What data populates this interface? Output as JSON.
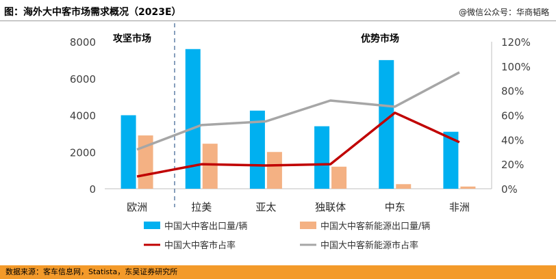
{
  "header": {
    "title": "图：海外大中客市场需求概况（2023E）",
    "watermark": "@微信公众号：华商韬略"
  },
  "footer": {
    "source": "数据来源：客车信息网，Statista，东吴证券研究所"
  },
  "colors": {
    "export_bar": "#00b0f0",
    "nev_export_bar": "#f4b183",
    "market_share_line": "#c00000",
    "nev_share_line": "#a6a6a6",
    "footer_band": "#f39a2a"
  },
  "chart_data": {
    "type": "bar",
    "categories": [
      "欧洲",
      "拉美",
      "亚太",
      "独联体",
      "中东",
      "非洲"
    ],
    "series": [
      {
        "name": "中国大中客出口量/辆",
        "type": "bar",
        "axis": "left",
        "values": [
          4000,
          7600,
          4250,
          3400,
          7000,
          3100
        ]
      },
      {
        "name": "中国大中客新能源出口量/辆",
        "type": "bar",
        "axis": "left",
        "values": [
          2900,
          2450,
          2000,
          1200,
          250,
          120
        ]
      },
      {
        "name": "中国大中客市占率",
        "type": "line",
        "axis": "right",
        "values": [
          0.1,
          0.2,
          0.19,
          0.2,
          0.62,
          0.38
        ]
      },
      {
        "name": "中国大中客新能源市占率",
        "type": "line",
        "axis": "right",
        "values": [
          0.32,
          0.52,
          0.55,
          0.72,
          0.67,
          0.95
        ]
      }
    ],
    "left_axis": {
      "min": 0,
      "max": 8000,
      "ticks": [
        "0",
        "2000",
        "4000",
        "6000",
        "8000"
      ]
    },
    "right_axis": {
      "min": 0,
      "max": 1.2,
      "ticks": [
        "0%",
        "20%",
        "40%",
        "60%",
        "80%",
        "100%",
        "120%"
      ]
    },
    "annotations": [
      "攻坚市场",
      "优势市场"
    ],
    "grid": false,
    "legend_position": "bottom"
  }
}
